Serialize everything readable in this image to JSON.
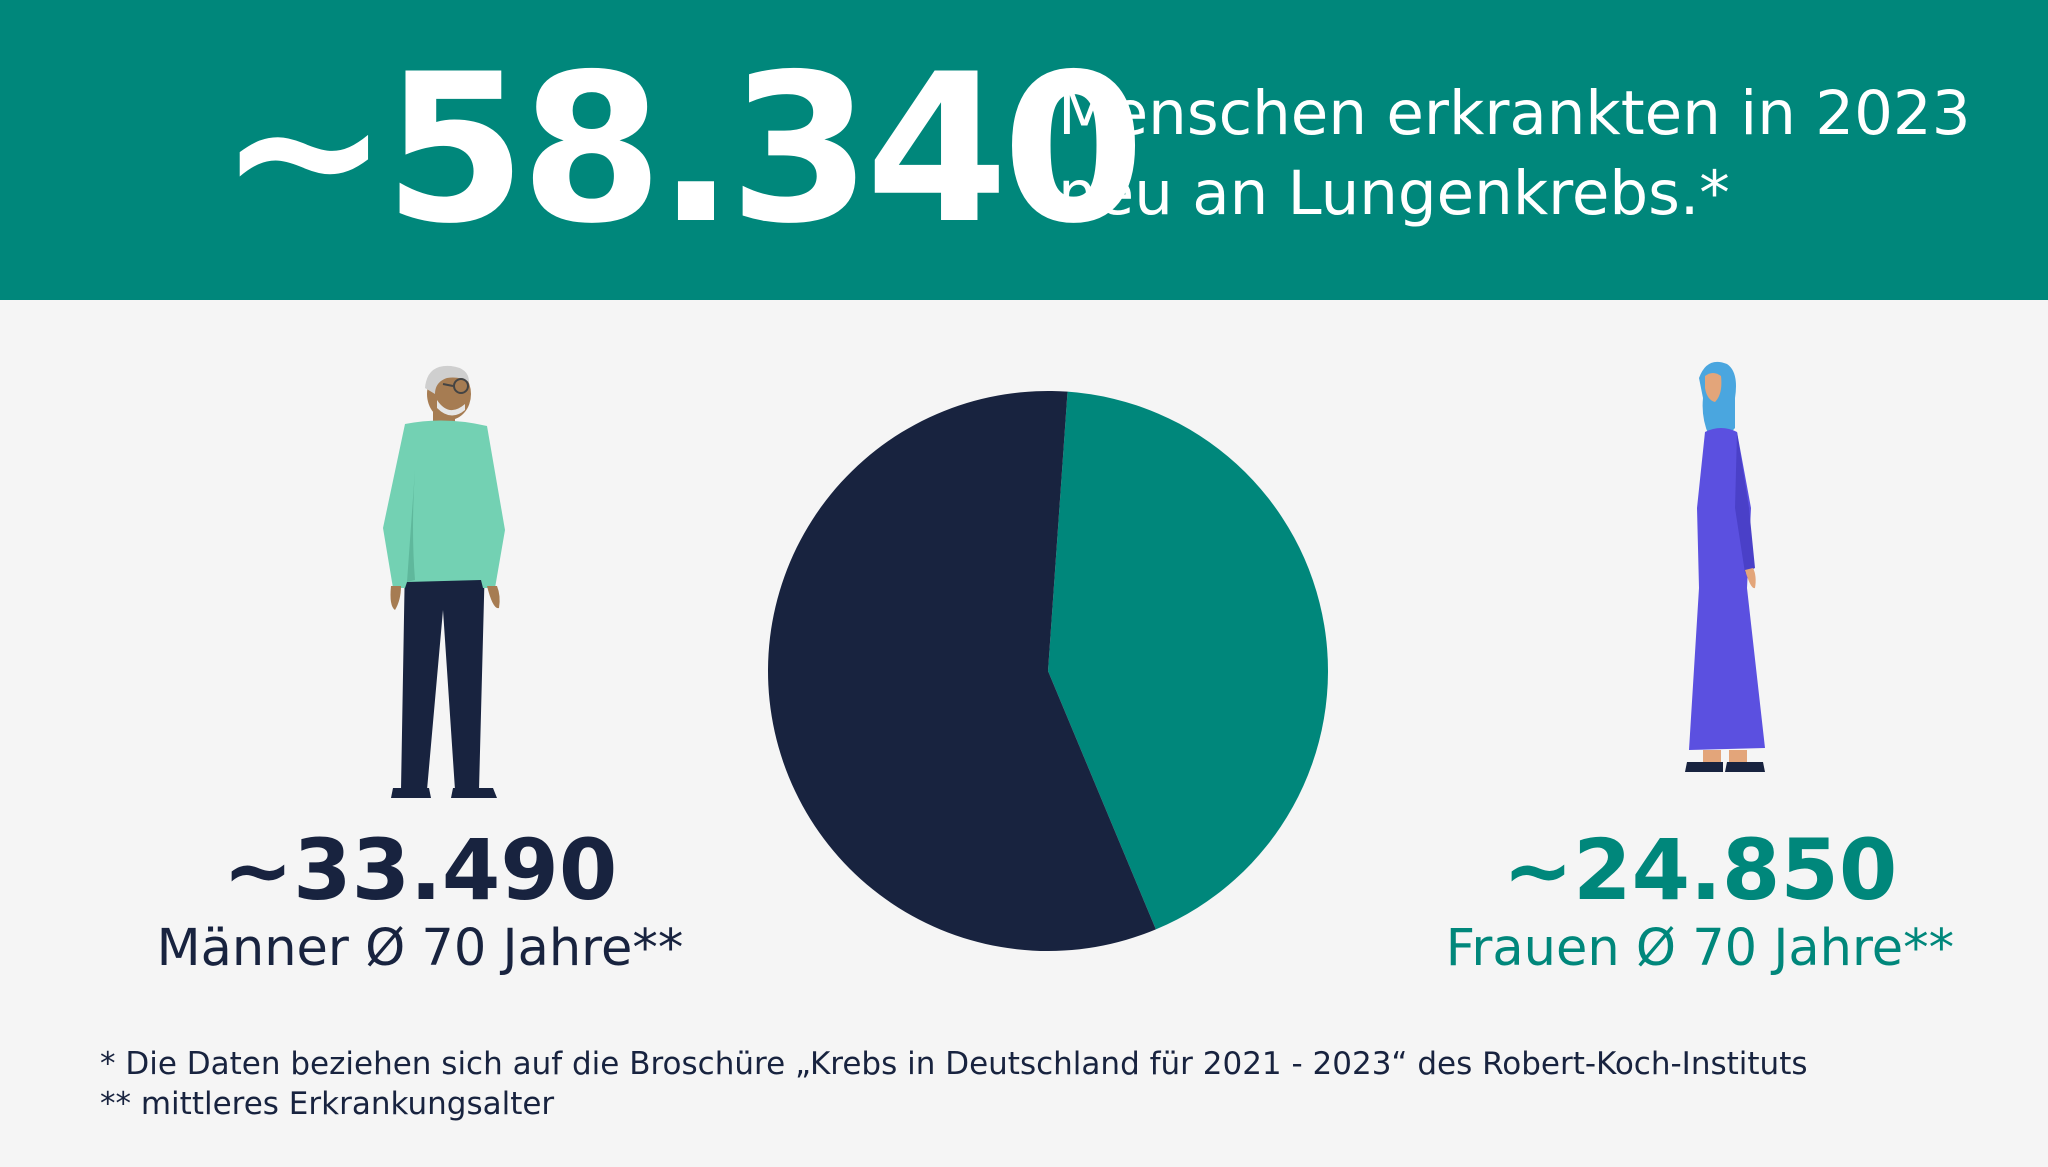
{
  "header": {
    "total": "~58.340",
    "line1": "Menschen erkrankten in 2023",
    "line2": "neu an Lungenkrebs.*"
  },
  "men": {
    "count": "~33.490",
    "label": "Männer Ø 70 Jahre**"
  },
  "women": {
    "count": "~24.850",
    "label": "Frauen Ø 70 Jahre**"
  },
  "footnotes": {
    "note1": "* Die Daten beziehen sich auf die Broschüre „Krebs in Deutschland für 2021 - 2023“ des Robert-Koch-Instituts",
    "note2": "** mittleres Erkrankungsalter"
  },
  "chart_data": {
    "type": "pie",
    "categories": [
      "Männer",
      "Frauen"
    ],
    "values": [
      33490,
      24850
    ],
    "colors": [
      "#18233f",
      "#00877b"
    ]
  },
  "colors": {
    "teal": "#00877b",
    "navy": "#18233f",
    "background": "#f5f5f5"
  },
  "icons": {
    "man": "man-figure-icon",
    "woman": "woman-figure-icon"
  }
}
